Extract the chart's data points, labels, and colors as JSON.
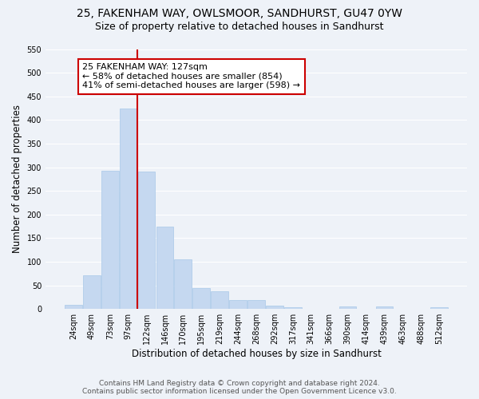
{
  "title": "25, FAKENHAM WAY, OWLSMOOR, SANDHURST, GU47 0YW",
  "subtitle": "Size of property relative to detached houses in Sandhurst",
  "xlabel": "Distribution of detached houses by size in Sandhurst",
  "ylabel": "Number of detached properties",
  "bar_color": "#c5d8f0",
  "bar_edge_color": "#a8c8e8",
  "background_color": "#eef2f8",
  "grid_color": "#ffffff",
  "categories": [
    "24sqm",
    "49sqm",
    "73sqm",
    "97sqm",
    "122sqm",
    "146sqm",
    "170sqm",
    "195sqm",
    "219sqm",
    "244sqm",
    "268sqm",
    "292sqm",
    "317sqm",
    "341sqm",
    "366sqm",
    "390sqm",
    "414sqm",
    "439sqm",
    "463sqm",
    "488sqm",
    "512sqm"
  ],
  "values": [
    8,
    72,
    292,
    425,
    291,
    175,
    105,
    44,
    38,
    19,
    19,
    7,
    4,
    0,
    0,
    5,
    0,
    5,
    0,
    0,
    3
  ],
  "vline_x_idx": 4,
  "vline_color": "#cc0000",
  "annotation_title": "25 FAKENHAM WAY: 127sqm",
  "annotation_line1": "← 58% of detached houses are smaller (854)",
  "annotation_line2": "41% of semi-detached houses are larger (598) →",
  "annotation_box_color": "#ffffff",
  "annotation_box_edge": "#cc0000",
  "ylim": [
    0,
    550
  ],
  "yticks": [
    0,
    50,
    100,
    150,
    200,
    250,
    300,
    350,
    400,
    450,
    500,
    550
  ],
  "footer1": "Contains HM Land Registry data © Crown copyright and database right 2024.",
  "footer2": "Contains public sector information licensed under the Open Government Licence v3.0.",
  "title_fontsize": 10,
  "subtitle_fontsize": 9,
  "axis_label_fontsize": 8.5,
  "tick_fontsize": 7,
  "annotation_fontsize": 8,
  "footer_fontsize": 6.5
}
